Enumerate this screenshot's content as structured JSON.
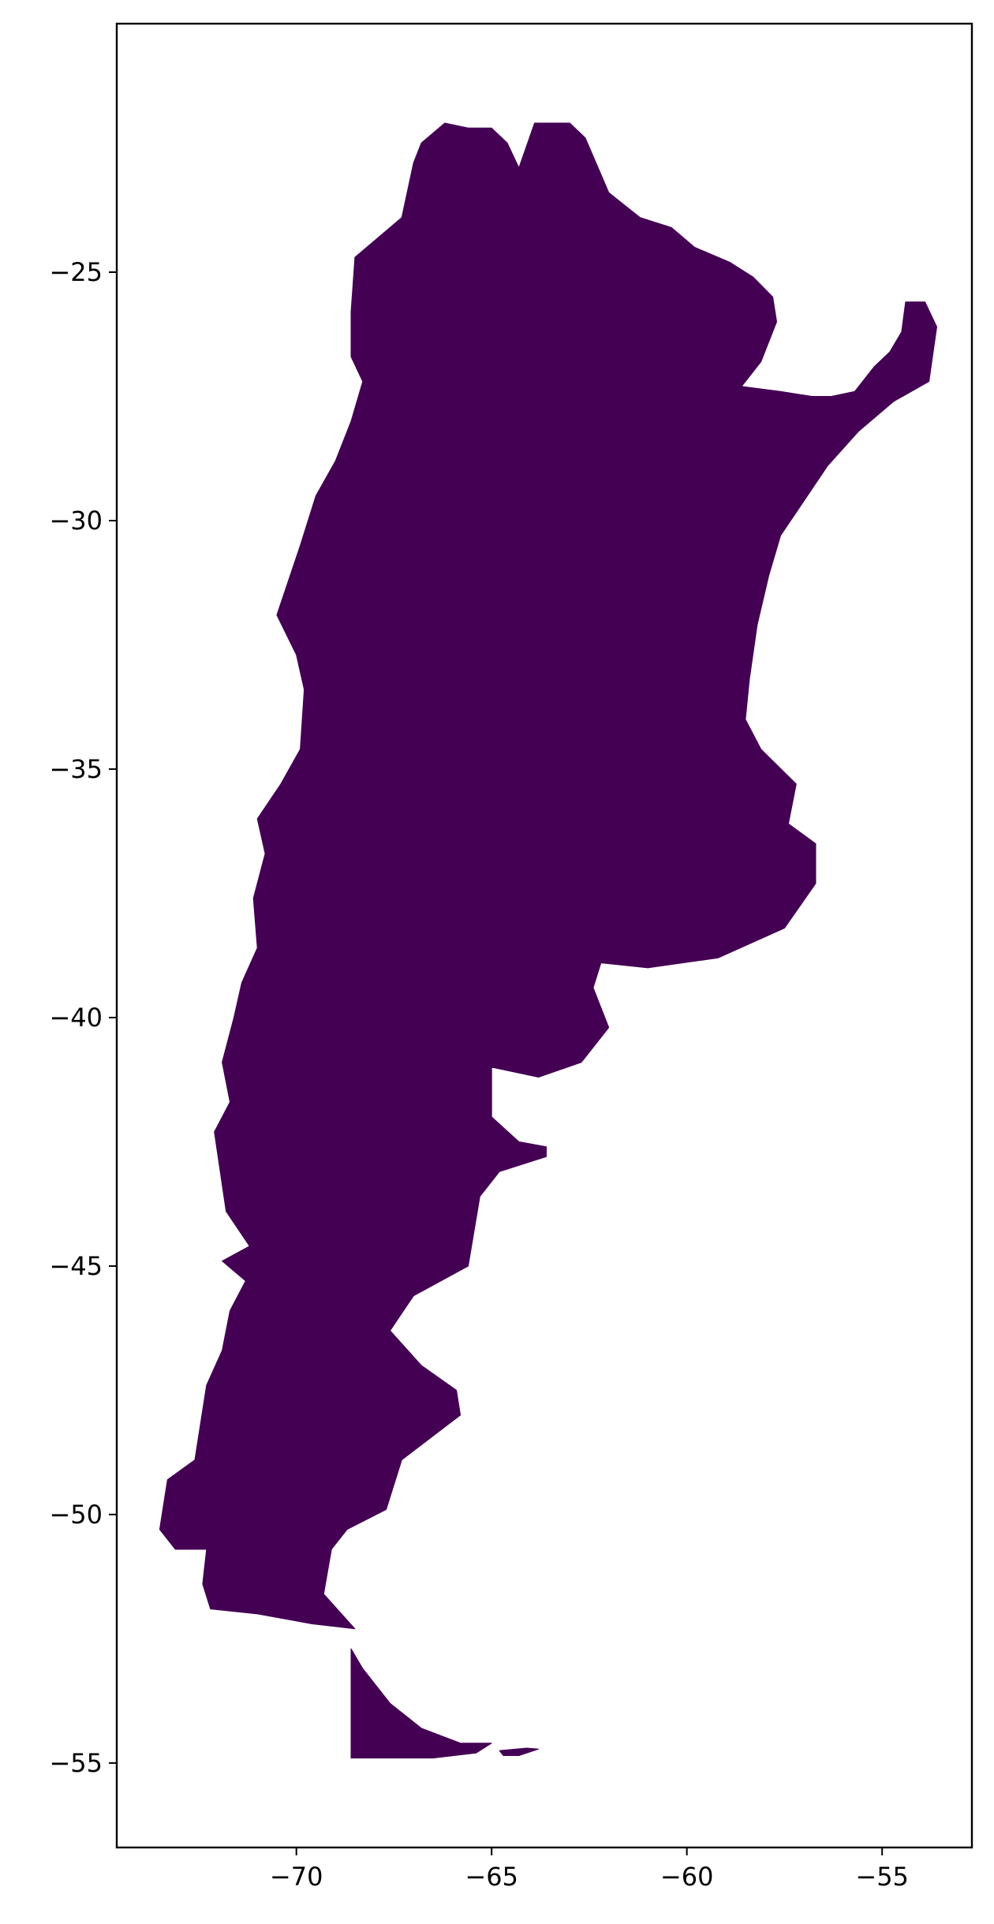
{
  "map": {
    "projection": "plate-carree",
    "fill_color": "#440154",
    "frame_color": "#000000",
    "background": "#ffffff",
    "extent": {
      "lon": [
        -74.6,
        -52.7
      ],
      "lat": [
        -56.7,
        -20.0
      ]
    },
    "x_ticks": [
      {
        "value": -70,
        "label": "−70"
      },
      {
        "value": -65,
        "label": "−65"
      },
      {
        "value": -60,
        "label": "−60"
      },
      {
        "value": -55,
        "label": "−55"
      }
    ],
    "y_ticks": [
      {
        "value": -25,
        "label": "−25"
      },
      {
        "value": -30,
        "label": "−30"
      },
      {
        "value": -35,
        "label": "−35"
      },
      {
        "value": -40,
        "label": "−40"
      },
      {
        "value": -45,
        "label": "−45"
      },
      {
        "value": -50,
        "label": "−50"
      },
      {
        "value": -55,
        "label": "−55"
      }
    ],
    "regions": [
      {
        "name": "mainland",
        "coords": [
          [
            -66.2,
            -22.0
          ],
          [
            -65.6,
            -22.1
          ],
          [
            -65.0,
            -22.1
          ],
          [
            -64.6,
            -22.4
          ],
          [
            -64.3,
            -22.9
          ],
          [
            -63.9,
            -22.0
          ],
          [
            -63.0,
            -22.0
          ],
          [
            -62.6,
            -22.3
          ],
          [
            -62.0,
            -23.4
          ],
          [
            -61.2,
            -23.9
          ],
          [
            -60.4,
            -24.1
          ],
          [
            -59.8,
            -24.5
          ],
          [
            -58.9,
            -24.8
          ],
          [
            -58.3,
            -25.1
          ],
          [
            -57.8,
            -25.5
          ],
          [
            -57.7,
            -26.0
          ],
          [
            -58.1,
            -26.8
          ],
          [
            -58.6,
            -27.3
          ],
          [
            -57.6,
            -27.4
          ],
          [
            -56.8,
            -27.5
          ],
          [
            -56.3,
            -27.5
          ],
          [
            -55.7,
            -27.4
          ],
          [
            -55.2,
            -26.9
          ],
          [
            -54.8,
            -26.6
          ],
          [
            -54.5,
            -26.2
          ],
          [
            -54.4,
            -25.6
          ],
          [
            -53.9,
            -25.6
          ],
          [
            -53.6,
            -26.1
          ],
          [
            -53.8,
            -27.2
          ],
          [
            -54.7,
            -27.6
          ],
          [
            -55.6,
            -28.2
          ],
          [
            -56.4,
            -28.9
          ],
          [
            -57.0,
            -29.6
          ],
          [
            -57.6,
            -30.3
          ],
          [
            -57.9,
            -31.1
          ],
          [
            -58.2,
            -32.1
          ],
          [
            -58.4,
            -33.2
          ],
          [
            -58.5,
            -34.0
          ],
          [
            -58.1,
            -34.6
          ],
          [
            -57.2,
            -35.3
          ],
          [
            -57.4,
            -36.1
          ],
          [
            -56.7,
            -36.5
          ],
          [
            -56.7,
            -37.3
          ],
          [
            -57.5,
            -38.2
          ],
          [
            -59.2,
            -38.8
          ],
          [
            -61.0,
            -39.0
          ],
          [
            -62.2,
            -38.9
          ],
          [
            -62.4,
            -39.4
          ],
          [
            -62.0,
            -40.2
          ],
          [
            -62.7,
            -40.9
          ],
          [
            -63.8,
            -41.2
          ],
          [
            -65.0,
            -41.0
          ],
          [
            -65.0,
            -42.0
          ],
          [
            -64.3,
            -42.5
          ],
          [
            -63.6,
            -42.6
          ],
          [
            -63.6,
            -42.8
          ],
          [
            -64.8,
            -43.1
          ],
          [
            -65.3,
            -43.6
          ],
          [
            -65.6,
            -45.0
          ],
          [
            -67.0,
            -45.6
          ],
          [
            -67.6,
            -46.3
          ],
          [
            -66.8,
            -47.0
          ],
          [
            -65.9,
            -47.5
          ],
          [
            -65.8,
            -48.0
          ],
          [
            -67.3,
            -48.9
          ],
          [
            -67.7,
            -49.9
          ],
          [
            -68.7,
            -50.3
          ],
          [
            -69.1,
            -50.7
          ],
          [
            -69.3,
            -51.6
          ],
          [
            -68.5,
            -52.3
          ],
          [
            -69.6,
            -52.2
          ],
          [
            -71.0,
            -52.0
          ],
          [
            -72.2,
            -51.9
          ],
          [
            -72.4,
            -51.4
          ],
          [
            -72.3,
            -50.7
          ],
          [
            -73.1,
            -50.7
          ],
          [
            -73.5,
            -50.3
          ],
          [
            -73.3,
            -49.3
          ],
          [
            -72.6,
            -48.9
          ],
          [
            -72.3,
            -47.4
          ],
          [
            -71.9,
            -46.7
          ],
          [
            -71.7,
            -45.9
          ],
          [
            -71.3,
            -45.3
          ],
          [
            -71.9,
            -44.9
          ],
          [
            -71.2,
            -44.6
          ],
          [
            -71.8,
            -43.9
          ],
          [
            -72.1,
            -42.3
          ],
          [
            -71.7,
            -41.7
          ],
          [
            -71.9,
            -40.9
          ],
          [
            -71.6,
            -40.0
          ],
          [
            -71.4,
            -39.3
          ],
          [
            -71.0,
            -38.6
          ],
          [
            -71.1,
            -37.6
          ],
          [
            -70.8,
            -36.7
          ],
          [
            -71.0,
            -36.0
          ],
          [
            -70.4,
            -35.3
          ],
          [
            -69.9,
            -34.6
          ],
          [
            -69.8,
            -33.4
          ],
          [
            -70.0,
            -32.7
          ],
          [
            -70.5,
            -31.9
          ],
          [
            -69.9,
            -30.5
          ],
          [
            -69.5,
            -29.5
          ],
          [
            -69.0,
            -28.8
          ],
          [
            -68.6,
            -28.0
          ],
          [
            -68.3,
            -27.2
          ],
          [
            -68.6,
            -26.7
          ],
          [
            -68.6,
            -25.8
          ],
          [
            -68.5,
            -24.7
          ],
          [
            -67.3,
            -23.9
          ],
          [
            -67.0,
            -22.8
          ],
          [
            -66.8,
            -22.4
          ]
        ]
      },
      {
        "name": "tierra-del-fuego",
        "coords": [
          [
            -68.6,
            -52.7
          ],
          [
            -68.3,
            -53.1
          ],
          [
            -67.6,
            -53.8
          ],
          [
            -66.8,
            -54.3
          ],
          [
            -65.8,
            -54.6
          ],
          [
            -65.0,
            -54.6
          ],
          [
            -65.4,
            -54.8
          ],
          [
            -66.5,
            -54.9
          ],
          [
            -67.5,
            -54.9
          ],
          [
            -68.6,
            -54.9
          ]
        ]
      },
      {
        "name": "isla-de-los-estados",
        "coords": [
          [
            -64.8,
            -54.75
          ],
          [
            -64.1,
            -54.7
          ],
          [
            -63.8,
            -54.72
          ],
          [
            -64.3,
            -54.85
          ],
          [
            -64.7,
            -54.85
          ]
        ]
      }
    ]
  }
}
